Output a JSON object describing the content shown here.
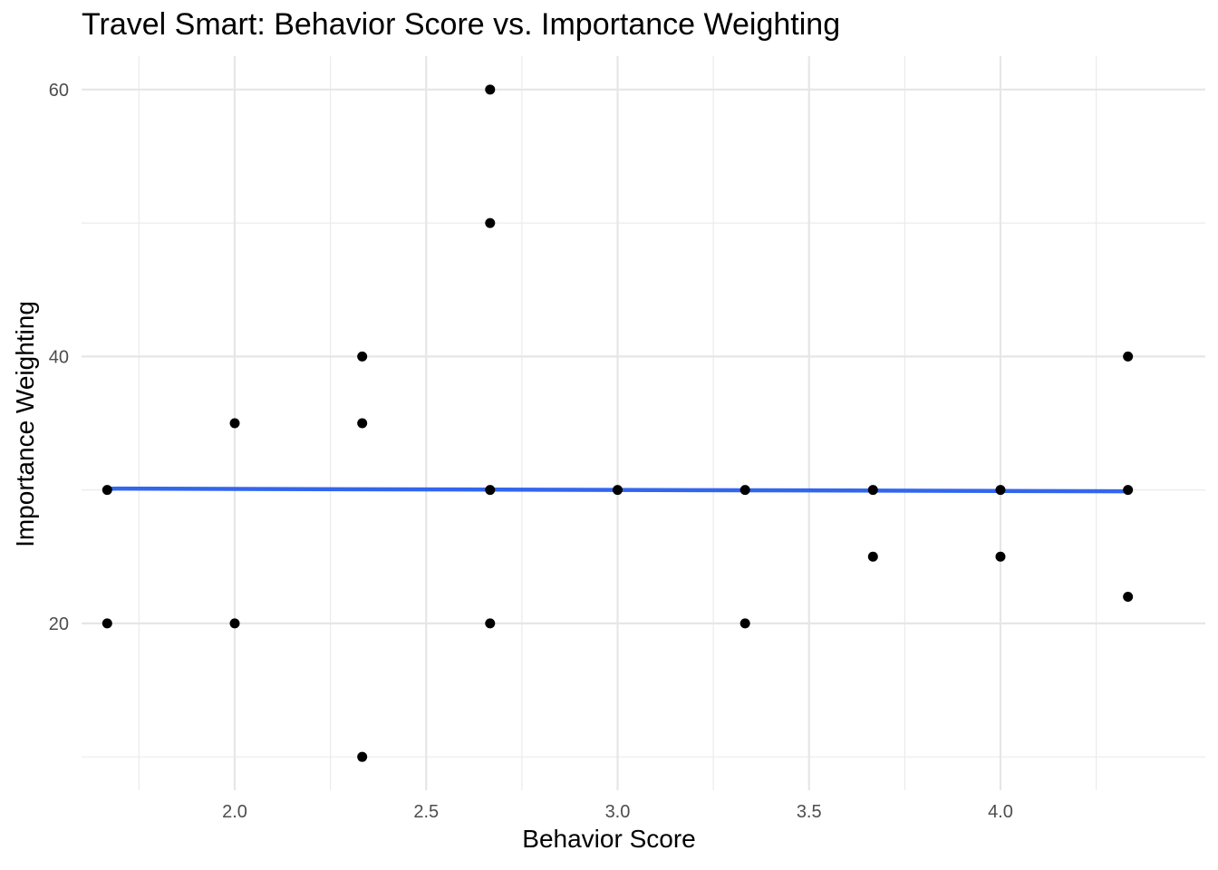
{
  "chart_data": {
    "type": "scatter",
    "title": "Travel Smart: Behavior Score vs. Importance Weighting",
    "xlabel": "Behavior Score",
    "ylabel": "Importance Weighting",
    "xlim": [
      1.6,
      4.535
    ],
    "ylim": [
      7.5,
      62.5
    ],
    "x_ticks": [
      "2.0",
      "2.5",
      "3.0",
      "3.5",
      "4.0"
    ],
    "x_tick_values": [
      2.0,
      2.5,
      3.0,
      3.5,
      4.0
    ],
    "y_ticks": [
      "20",
      "40",
      "60"
    ],
    "y_tick_values": [
      20,
      40,
      60
    ],
    "grid": true,
    "point_color": "#000000",
    "trend_color": "#3366ee",
    "points": [
      {
        "x": 1.667,
        "y": 30
      },
      {
        "x": 1.667,
        "y": 20
      },
      {
        "x": 2.0,
        "y": 35
      },
      {
        "x": 2.0,
        "y": 20
      },
      {
        "x": 2.333,
        "y": 40
      },
      {
        "x": 2.333,
        "y": 35
      },
      {
        "x": 2.333,
        "y": 10
      },
      {
        "x": 2.667,
        "y": 60
      },
      {
        "x": 2.667,
        "y": 50
      },
      {
        "x": 2.667,
        "y": 30
      },
      {
        "x": 2.667,
        "y": 20
      },
      {
        "x": 3.0,
        "y": 30
      },
      {
        "x": 3.333,
        "y": 30
      },
      {
        "x": 3.333,
        "y": 20
      },
      {
        "x": 3.667,
        "y": 30
      },
      {
        "x": 3.667,
        "y": 25
      },
      {
        "x": 4.0,
        "y": 30
      },
      {
        "x": 4.0,
        "y": 25
      },
      {
        "x": 4.333,
        "y": 40
      },
      {
        "x": 4.333,
        "y": 30
      },
      {
        "x": 4.333,
        "y": 22
      }
    ],
    "trend_line": {
      "x": [
        1.667,
        4.333
      ],
      "y": [
        30.1,
        29.9
      ]
    }
  }
}
